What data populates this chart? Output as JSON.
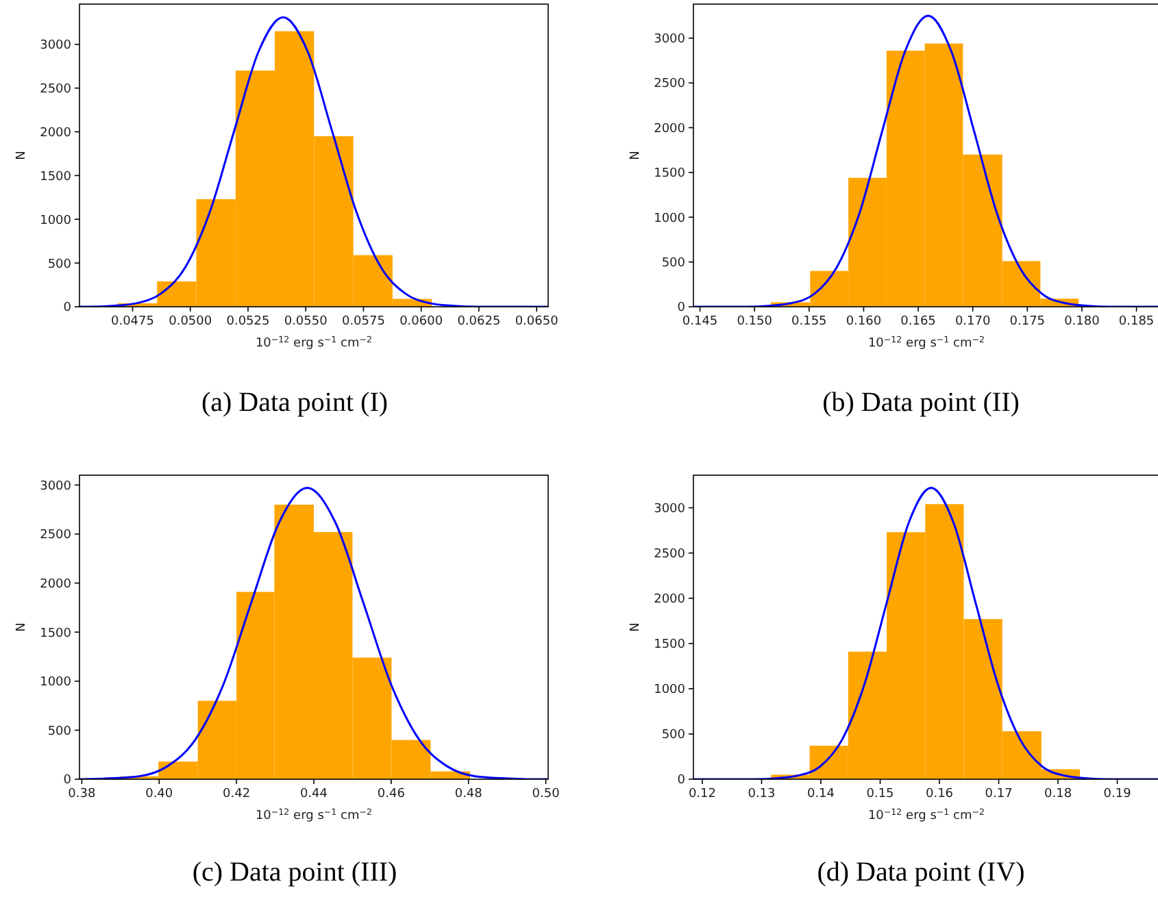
{
  "chart_data": [
    {
      "type": "histogram",
      "title": "(a) Data point (I)",
      "xlabel": "10$^{−12}$ erg s$^{−1}$ cm$^{−2}$",
      "ylabel": "N",
      "xlim": [
        0.0452,
        0.0655
      ],
      "xticks": [
        {
          "value": 0.0475,
          "label": "0.0475"
        },
        {
          "value": 0.05,
          "label": "0.0500"
        },
        {
          "value": 0.0525,
          "label": "0.0525"
        },
        {
          "value": 0.055,
          "label": "0.0550"
        },
        {
          "value": 0.0575,
          "label": "0.0575"
        },
        {
          "value": 0.06,
          "label": "0.0600"
        },
        {
          "value": 0.0625,
          "label": "0.0625"
        },
        {
          "value": 0.065,
          "label": "0.0650"
        }
      ],
      "ylim": [
        0,
        3460
      ],
      "yticks": [
        0,
        500,
        1000,
        1500,
        2000,
        2500,
        3000
      ],
      "bins": [
        0.04686,
        0.04856,
        0.05026,
        0.05196,
        0.05366,
        0.05536,
        0.05706,
        0.05876,
        0.06046
      ],
      "series": [
        {
          "color": "#ffa500",
          "values": [
            40,
            290,
            1230,
            2700,
            3150,
            1950,
            590,
            90
          ]
        },
        {
          "type": "line",
          "color": "#0000ff",
          "x": [
            0.0452,
            0.04554,
            0.0466,
            0.04766,
            0.04872,
            0.04978,
            0.05084,
            0.0519,
            0.05296,
            0.05402,
            0.05508,
            0.05614,
            0.0572,
            0.05826,
            0.05932,
            0.06038,
            0.06144,
            0.0625,
            0.0655
          ],
          "values": [
            0,
            0,
            10,
            40,
            150,
            450,
            1080,
            2010,
            2920,
            3310,
            2920,
            2010,
            1080,
            450,
            150,
            40,
            10,
            0,
            0
          ]
        }
      ]
    },
    {
      "type": "histogram",
      "title": "(b) Data point (II)",
      "xlabel": "10$^{−12}$ erg s$^{−1}$ cm$^{−2}$",
      "ylabel": "N",
      "xlim": [
        0.1444,
        0.1871
      ],
      "xticks": [
        {
          "value": 0.145,
          "label": "0.145"
        },
        {
          "value": 0.15,
          "label": "0.150"
        },
        {
          "value": 0.155,
          "label": "0.155"
        },
        {
          "value": 0.16,
          "label": "0.160"
        },
        {
          "value": 0.165,
          "label": "0.165"
        },
        {
          "value": 0.17,
          "label": "0.170"
        },
        {
          "value": 0.175,
          "label": "0.175"
        },
        {
          "value": 0.18,
          "label": "0.180"
        },
        {
          "value": 0.185,
          "label": "0.185"
        }
      ],
      "ylim": [
        0,
        3380
      ],
      "yticks": [
        0,
        500,
        1000,
        1500,
        2000,
        2500,
        3000
      ],
      "bins": [
        0.1515,
        0.1551,
        0.1586,
        0.1621,
        0.1656,
        0.1691,
        0.1727,
        0.1762,
        0.1797
      ],
      "series": [
        {
          "color": "#ffa500",
          "values": [
            50,
            400,
            1440,
            2860,
            2940,
            1700,
            510,
            90
          ]
        },
        {
          "type": "line",
          "color": "#0000ff",
          "x": [
            0.1444,
            0.14915,
            0.15125,
            0.15334,
            0.15544,
            0.15753,
            0.15963,
            0.16172,
            0.16382,
            0.16591,
            0.16801,
            0.1701,
            0.1722,
            0.17429,
            0.17639,
            0.17848,
            0.18058,
            0.18267,
            0.1871
          ],
          "values": [
            0,
            0,
            10,
            40,
            140,
            440,
            1050,
            1970,
            2860,
            3250,
            2860,
            1970,
            1050,
            440,
            140,
            40,
            10,
            0,
            0
          ]
        }
      ]
    },
    {
      "type": "histogram",
      "title": "(c) Data point (III)",
      "xlabel": "10$^{−12}$ erg s$^{−1}$ cm$^{−2}$",
      "ylabel": "N",
      "xlim": [
        0.3794,
        0.5006
      ],
      "xticks": [
        {
          "value": 0.38,
          "label": "0.38"
        },
        {
          "value": 0.4,
          "label": "0.40"
        },
        {
          "value": 0.42,
          "label": "0.42"
        },
        {
          "value": 0.44,
          "label": "0.44"
        },
        {
          "value": 0.46,
          "label": "0.46"
        },
        {
          "value": 0.48,
          "label": "0.48"
        },
        {
          "value": 0.5,
          "label": "0.50"
        }
      ],
      "ylim": [
        0,
        3100
      ],
      "yticks": [
        0,
        500,
        1000,
        1500,
        2000,
        2500,
        3000
      ],
      "bins": [
        0.3898,
        0.3998,
        0.41,
        0.42,
        0.4298,
        0.44,
        0.45,
        0.4601,
        0.4702,
        0.4804
      ],
      "series": [
        {
          "color": "#ffa500",
          "values": [
            30,
            180,
            800,
            1910,
            2800,
            2520,
            1240,
            400,
            80
          ]
        },
        {
          "type": "line",
          "color": "#0000ff",
          "x": [
            0.3794,
            0.3803,
            0.38755,
            0.3948,
            0.40205,
            0.4093,
            0.41655,
            0.4238,
            0.43105,
            0.4383,
            0.44555,
            0.4528,
            0.46005,
            0.4673,
            0.47455,
            0.4818,
            0.48905,
            0.4963,
            0.5006
          ],
          "values": [
            0,
            0,
            10,
            30,
            130,
            400,
            960,
            1800,
            2620,
            2970,
            2620,
            1800,
            960,
            400,
            130,
            30,
            10,
            0,
            0
          ]
        }
      ]
    },
    {
      "type": "histogram",
      "title": "(d) Data point (IV)",
      "xlabel": "10$^{−12}$ erg s$^{−1}$ cm$^{−2}$",
      "ylabel": "N",
      "xlim": [
        0.1185,
        0.1971
      ],
      "xticks": [
        {
          "value": 0.12,
          "label": "0.12"
        },
        {
          "value": 0.13,
          "label": "0.13"
        },
        {
          "value": 0.14,
          "label": "0.14"
        },
        {
          "value": 0.15,
          "label": "0.15"
        },
        {
          "value": 0.16,
          "label": "0.16"
        },
        {
          "value": 0.17,
          "label": "0.17"
        },
        {
          "value": 0.18,
          "label": "0.18"
        },
        {
          "value": 0.19,
          "label": "0.19"
        }
      ],
      "ylim": [
        0,
        3360
      ],
      "yticks": [
        0,
        500,
        1000,
        1500,
        2000,
        2500,
        3000
      ],
      "bins": [
        0.1316,
        0.1381,
        0.1446,
        0.1511,
        0.1576,
        0.1641,
        0.1706,
        0.1772,
        0.1837
      ],
      "series": [
        {
          "color": "#ffa500",
          "values": [
            50,
            370,
            1410,
            2730,
            3040,
            1770,
            530,
            110
          ]
        },
        {
          "type": "line",
          "color": "#0000ff",
          "x": [
            0.1185,
            0.1286,
            0.13235,
            0.1361,
            0.13985,
            0.1436,
            0.14735,
            0.1511,
            0.15485,
            0.1586,
            0.16235,
            0.1661,
            0.16985,
            0.1736,
            0.17735,
            0.1811,
            0.18485,
            0.1886,
            0.1971
          ],
          "values": [
            0,
            0,
            10,
            40,
            140,
            440,
            1050,
            1950,
            2840,
            3220,
            2840,
            1950,
            1050,
            440,
            140,
            40,
            10,
            0,
            0
          ]
        }
      ]
    }
  ]
}
